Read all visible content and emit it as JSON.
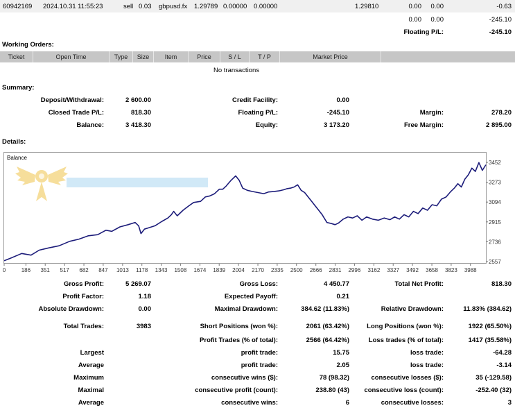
{
  "top_row": {
    "ticket": "60942169",
    "time": "2024.10.31 11:55:23",
    "type": "sell",
    "size": "0.03",
    "item": "gbpusd.fx",
    "price": "1.29789",
    "sl": "0.00000",
    "tp": "0.00000",
    "market_price": "1.29810",
    "commission": "0.00",
    "swap": "0.00",
    "profit": "-0.63"
  },
  "totals_row": {
    "commission": "0.00",
    "swap": "0.00",
    "profit": "-245.10"
  },
  "floating_row": {
    "label": "Floating P/L:",
    "value": "-245.10"
  },
  "working_orders": {
    "title": "Working Orders:",
    "columns": [
      "Ticket",
      "Open Time",
      "Type",
      "Size",
      "Item",
      "Price",
      "S / L",
      "T / P",
      "Market Price"
    ],
    "empty_text": "No transactions"
  },
  "summary": {
    "title": "Summary:",
    "deposit_label": "Deposit/Withdrawal:",
    "deposit_value": "2 600.00",
    "credit_label": "Credit Facility:",
    "credit_value": "0.00",
    "closed_label": "Closed Trade P/L:",
    "closed_value": "818.30",
    "floating_label": "Floating P/L:",
    "floating_value": "-245.10",
    "margin_label": "Margin:",
    "margin_value": "278.20",
    "balance_label": "Balance:",
    "balance_value": "3 418.30",
    "equity_label": "Equity:",
    "equity_value": "3 173.20",
    "free_margin_label": "Free Margin:",
    "free_margin_value": "2 895.00"
  },
  "details": {
    "title": "Details:"
  },
  "chart_data": {
    "type": "line",
    "title": "Balance",
    "x_ticks": [
      "0",
      "186",
      "351",
      "517",
      "682",
      "847",
      "1013",
      "1178",
      "1343",
      "1508",
      "1674",
      "1839",
      "2004",
      "2170",
      "2335",
      "2500",
      "2666",
      "2831",
      "2996",
      "3162",
      "3327",
      "3492",
      "3658",
      "3823",
      "3988"
    ],
    "y_ticks": [
      "3452",
      "3273",
      "3094",
      "2915",
      "2736",
      "2557"
    ],
    "xlim": [
      0,
      4120
    ],
    "ylim": [
      2557,
      3452
    ],
    "grid": false,
    "series": [
      {
        "color": "#1c1c7a",
        "x": [
          0,
          60,
          150,
          230,
          300,
          380,
          470,
          560,
          640,
          720,
          800,
          870,
          920,
          990,
          1060,
          1120,
          1150,
          1170,
          1200,
          1230,
          1290,
          1350,
          1400,
          1430,
          1450,
          1480,
          1530,
          1580,
          1620,
          1680,
          1720,
          1760,
          1800,
          1840,
          1870,
          1900,
          1940,
          1980,
          2010,
          2040,
          2080,
          2120,
          2170,
          2220,
          2260,
          2310,
          2350,
          2390,
          2420,
          2450,
          2480,
          2510,
          2540,
          2570,
          2600,
          2630,
          2660,
          2690,
          2720,
          2760,
          2800,
          2830,
          2860,
          2900,
          2940,
          2980,
          3020,
          3060,
          3100,
          3150,
          3200,
          3250,
          3300,
          3340,
          3380,
          3420,
          3460,
          3500,
          3540,
          3580,
          3620,
          3660,
          3700,
          3740,
          3780,
          3820,
          3850,
          3880,
          3910,
          3940,
          3970,
          4000,
          4030,
          4060,
          4090,
          4120
        ],
        "y": [
          2565,
          2590,
          2630,
          2615,
          2660,
          2680,
          2700,
          2740,
          2760,
          2790,
          2800,
          2840,
          2830,
          2870,
          2890,
          2910,
          2880,
          2810,
          2850,
          2860,
          2880,
          2920,
          2950,
          2980,
          3010,
          2970,
          3020,
          3060,
          3090,
          3100,
          3140,
          3150,
          3170,
          3210,
          3210,
          3240,
          3290,
          3330,
          3290,
          3220,
          3200,
          3190,
          3180,
          3170,
          3185,
          3190,
          3195,
          3205,
          3215,
          3220,
          3230,
          3250,
          3200,
          3180,
          3140,
          3100,
          3060,
          3020,
          2980,
          2910,
          2900,
          2890,
          2905,
          2940,
          2960,
          2950,
          2970,
          2930,
          2960,
          2940,
          2930,
          2950,
          2935,
          2960,
          2940,
          2980,
          2960,
          3010,
          2990,
          3040,
          3020,
          3070,
          3060,
          3120,
          3140,
          3190,
          3220,
          3260,
          3230,
          3300,
          3340,
          3400,
          3370,
          3450,
          3380,
          3430
        ]
      }
    ]
  },
  "stats": {
    "gross_profit_label": "Gross Profit:",
    "gross_profit_value": "5 269.07",
    "gross_loss_label": "Gross Loss:",
    "gross_loss_value": "4 450.77",
    "total_net_label": "Total Net Profit:",
    "total_net_value": "818.30",
    "profit_factor_label": "Profit Factor:",
    "profit_factor_value": "1.18",
    "expected_payoff_label": "Expected Payoff:",
    "expected_payoff_value": "0.21",
    "abs_dd_label": "Absolute Drawdown:",
    "abs_dd_value": "0.00",
    "max_dd_label": "Maximal Drawdown:",
    "max_dd_value": "384.62 (11.83%)",
    "rel_dd_label": "Relative Drawdown:",
    "rel_dd_value": "11.83% (384.62)",
    "total_trades_label": "Total Trades:",
    "total_trades_value": "3983",
    "short_label": "Short Positions (won %):",
    "short_value": "2061 (63.42%)",
    "long_label": "Long Positions (won %):",
    "long_value": "1922 (65.50%)",
    "profit_trades_label": "Profit Trades (% of total):",
    "profit_trades_value": "2566 (64.42%)",
    "loss_trades_label": "Loss trades (% of total):",
    "loss_trades_value": "1417 (35.58%)",
    "largest_label": "Largest",
    "largest_profit_label": "profit trade:",
    "largest_profit_value": "15.75",
    "largest_loss_label": "loss trade:",
    "largest_loss_value": "-64.28",
    "average_label": "Average",
    "average_profit_label": "profit trade:",
    "average_profit_value": "2.05",
    "average_loss_label": "loss trade:",
    "average_loss_value": "-3.14",
    "maximum_label": "Maximum",
    "max_cons_wins_label": "consecutive wins ($):",
    "max_cons_wins_value": "78 (98.32)",
    "max_cons_losses_label": "consecutive losses ($):",
    "max_cons_losses_value": "35 (-129.58)",
    "maximal_label": "Maximal",
    "maximal_cons_profit_label": "consecutive profit (count):",
    "maximal_cons_profit_value": "238.80 (43)",
    "maximal_cons_loss_label": "consecutive loss (count):",
    "maximal_cons_loss_value": "-252.40 (32)",
    "average2_label": "Average",
    "avg_cons_wins_label": "consecutive wins:",
    "avg_cons_wins_value": "6",
    "avg_cons_losses_label": "consecutive losses:",
    "avg_cons_losses_value": "3"
  }
}
